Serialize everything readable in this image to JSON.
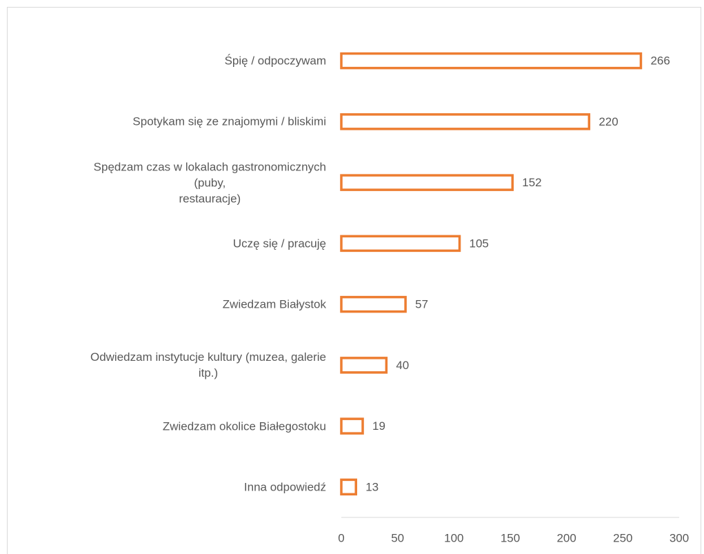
{
  "chart_data": {
    "type": "bar",
    "orientation": "horizontal",
    "categories": [
      "Śpię / odpoczywam",
      "Spotykam się ze znajomymi / bliskimi",
      "Spędzam czas w lokalach gastronomicznych\n(puby,\nrestauracje)",
      "Uczę się / pracuję",
      "Zwiedzam Białystok",
      "Odwiedzam instytucje kultury (muzea, galerie\nitp.)",
      "Zwiedzam okolice Białegostoku",
      "Inna odpowiedź"
    ],
    "values": [
      266,
      220,
      152,
      105,
      57,
      40,
      19,
      13
    ],
    "color": "#ed7d31",
    "xlim": [
      0,
      300
    ],
    "xticks": [
      0,
      50,
      100,
      150,
      200,
      250,
      300
    ],
    "grid": false
  }
}
